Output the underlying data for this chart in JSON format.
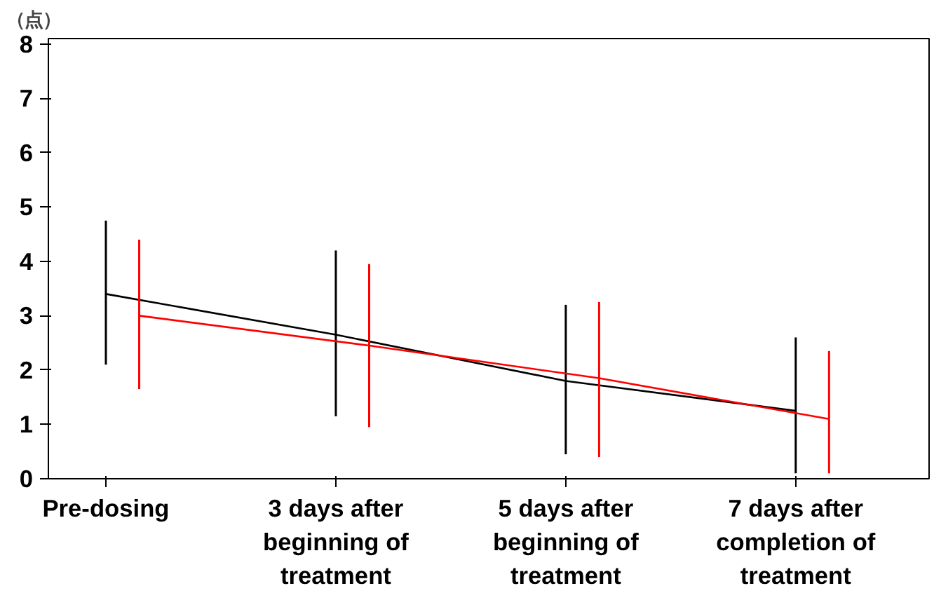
{
  "chart_data": {
    "type": "line",
    "ylabel": "（点）",
    "categories": [
      "Pre-dosing",
      "3 days after beginning of treatment",
      "5 days after beginning of treatment",
      "7 days after completion of treatment"
    ],
    "series": [
      {
        "color": "#000000",
        "values": [
          3.4,
          2.65,
          1.8,
          1.25
        ],
        "errors": [
          [
            2.1,
            4.75
          ],
          [
            1.15,
            4.2
          ],
          [
            0.45,
            3.2
          ],
          [
            0.1,
            2.6
          ]
        ]
      },
      {
        "color": "#ff0000",
        "values": [
          3.0,
          2.45,
          1.85,
          1.1
        ],
        "errors": [
          [
            1.65,
            4.4
          ],
          [
            0.95,
            3.95
          ],
          [
            0.4,
            3.25
          ],
          [
            0.1,
            2.35
          ]
        ]
      }
    ],
    "ylim": [
      0,
      8.1
    ],
    "yticks": [
      0,
      1,
      2,
      3,
      4,
      5,
      6,
      7,
      8
    ],
    "grid": false,
    "marker": "none",
    "line_style": "solid"
  }
}
